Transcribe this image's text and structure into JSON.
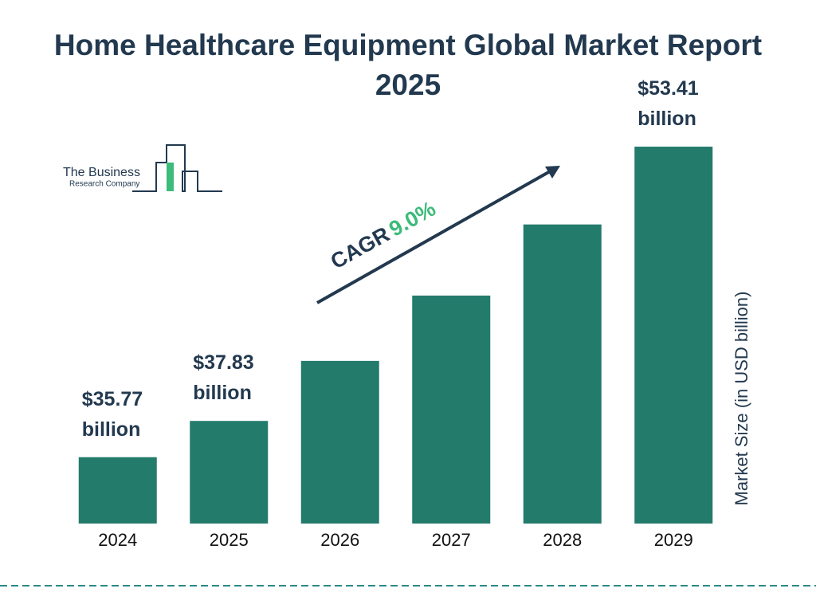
{
  "chart_data": {
    "type": "bar",
    "title": "Home Healthcare Equipment Global Market Report 2025",
    "categories": [
      "2024",
      "2025",
      "2026",
      "2027",
      "2028",
      "2029"
    ],
    "values": [
      35.77,
      37.83,
      41.24,
      44.95,
      48.99,
      53.41
    ],
    "value_labels": [
      "$35.77 billion",
      "$37.83 billion",
      null,
      null,
      null,
      "$53.41 billion"
    ],
    "color": "#237b6c",
    "ylim": [
      32,
      54
    ],
    "y_label": "Market Size (in USD billion)",
    "annotation": {
      "label": "CAGR",
      "value": "9.0%"
    }
  },
  "logo": {
    "line1": "The Business",
    "line2": "Research Company"
  }
}
